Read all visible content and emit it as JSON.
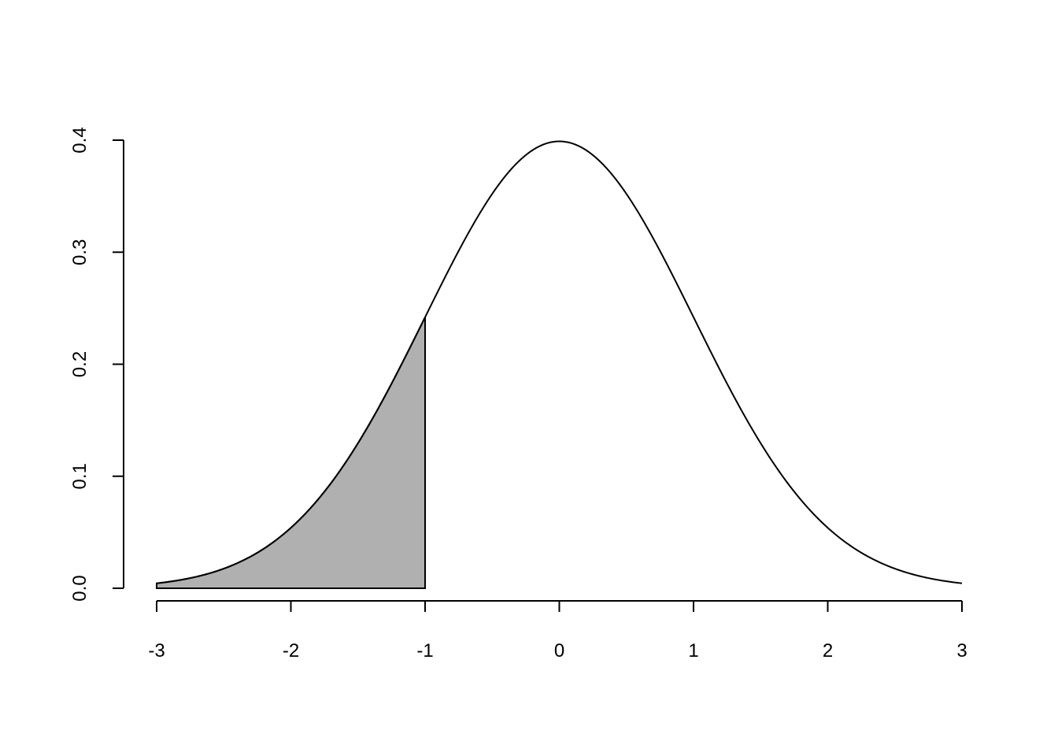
{
  "chart_data": {
    "type": "area",
    "title": "",
    "xlabel": "",
    "ylabel": "",
    "curve": {
      "function": "standard normal density",
      "mean": 0,
      "sd": 1,
      "x_range": [
        -3,
        3
      ]
    },
    "shaded_region": {
      "from": -3,
      "to": -1,
      "fill": "#b0b0b0"
    },
    "xlim": [
      -3,
      3
    ],
    "ylim": [
      0,
      0.4
    ],
    "x_ticks": [
      -3,
      -2,
      -1,
      0,
      1,
      2,
      3
    ],
    "x_tick_labels": [
      "-3",
      "-2",
      "-1",
      "0",
      "1",
      "2",
      "3"
    ],
    "y_ticks": [
      0,
      0.1,
      0.2,
      0.3,
      0.4
    ],
    "y_tick_labels": [
      "0.0",
      "0.1",
      "0.2",
      "0.3",
      "0.4"
    ],
    "grid": false,
    "line_color": "#000000"
  }
}
